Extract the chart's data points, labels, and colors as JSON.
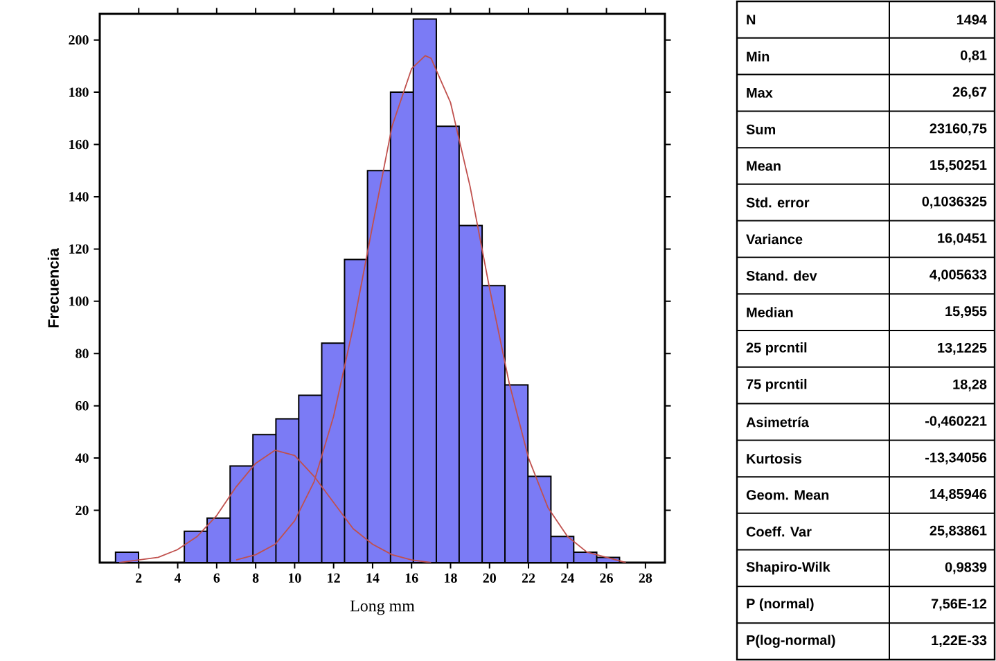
{
  "chart_data": [
    {
      "type": "histogram",
      "xlabel": "Long mm",
      "ylabel": "Frecuencia",
      "color": "#7b7bf5",
      "bins": [
        0.81,
        1.99,
        3.16,
        4.34,
        5.51,
        6.69,
        7.86,
        9.04,
        10.21,
        11.39,
        12.56,
        13.74,
        14.92,
        16.09,
        17.27,
        18.44,
        19.62,
        20.79,
        21.97,
        23.15,
        24.32,
        25.5,
        26.67
      ],
      "values": [
        4,
        0,
        0,
        12,
        17,
        37,
        49,
        55,
        64,
        84,
        116,
        150,
        180,
        208,
        167,
        129,
        106,
        68,
        33,
        10,
        4,
        2
      ],
      "series": [
        {
          "type": "line",
          "color": "#c0504d",
          "x": [
            1,
            2,
            3,
            4,
            5,
            6,
            7,
            8,
            9,
            10,
            11,
            12,
            13,
            14,
            15,
            16,
            17
          ],
          "values": [
            0,
            1,
            2,
            5,
            10,
            18,
            29,
            38,
            43,
            41,
            33,
            23,
            13,
            7,
            3,
            1,
            0
          ]
        },
        {
          "type": "line",
          "color": "#c0504d",
          "x": [
            7,
            8,
            9,
            10,
            11,
            12,
            13,
            14,
            15,
            16,
            16.7,
            17,
            18,
            19,
            20,
            21,
            22,
            23,
            24,
            25,
            26,
            27
          ],
          "values": [
            1,
            3,
            7,
            16,
            31,
            56,
            90,
            129,
            167,
            189,
            194,
            193,
            176,
            144,
            105,
            69,
            40,
            21,
            10,
            4,
            2,
            0
          ]
        }
      ],
      "xlim": [
        0,
        29
      ],
      "ylim": [
        0,
        210
      ],
      "xticks": [
        2,
        4,
        6,
        8,
        10,
        12,
        14,
        16,
        18,
        20,
        22,
        24,
        26,
        28
      ],
      "yticks": [
        20,
        40,
        60,
        80,
        100,
        120,
        140,
        160,
        180,
        200
      ]
    },
    {
      "type": "other",
      "annotations": [
        "N",
        "1494",
        "Min",
        "0,81",
        "Max",
        "26,67",
        "Sum",
        "23160,75",
        "Mean",
        "15,50251",
        "Std. error",
        "0,1036325",
        "Variance",
        "16,0451",
        "Stand. dev",
        "4,005633",
        "Median",
        "15,955",
        "25 prcntil",
        "13,1225",
        "75 prcntil",
        "18,28",
        "Asimetría",
        "-0,460221",
        "Kurtosis",
        "-13,34056",
        "Geom. Mean",
        "14,85946",
        "Coeff. Var",
        "25,83861",
        "Shapiro-Wilk",
        "0,9839",
        "P (normal)",
        "7,56E-12",
        "P(log-normal)",
        "1,22E-33"
      ]
    }
  ]
}
